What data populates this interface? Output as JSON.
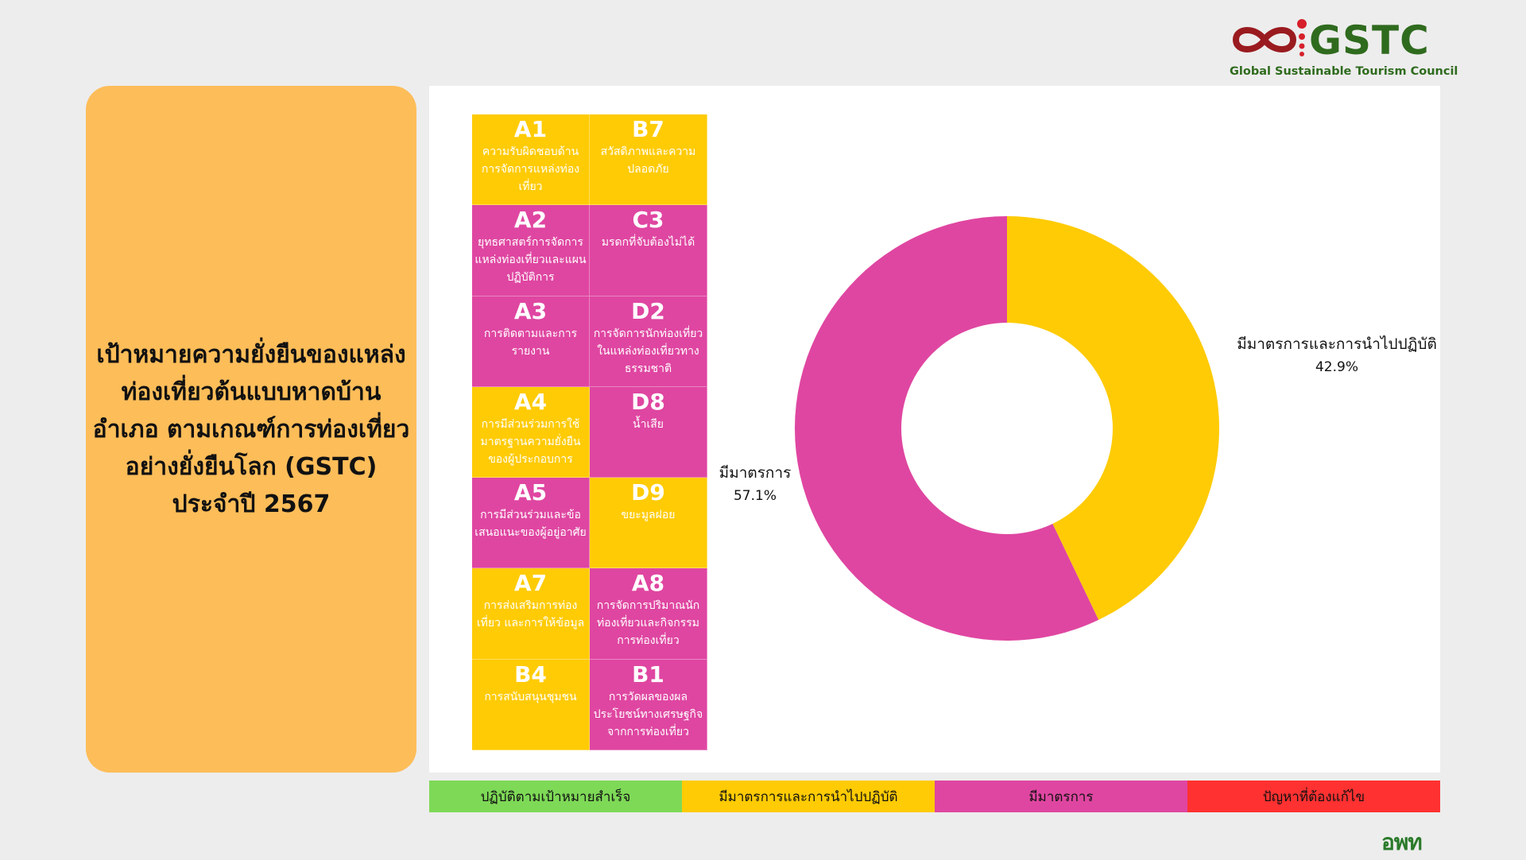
{
  "logo": {
    "name": "GSTC",
    "tagline": "Global Sustainable Tourism Council",
    "icon": "gstc-infinity-logo"
  },
  "title": "เป้าหมายความยั่งยืนของแหล่งท่องเที่ยวต้นแบบหาดบ้านอำเภอ ตามเกณฑ์การท่องเที่ยวอย่างยั่งยืนโลก (GSTC) ประจำปี 2567",
  "criteria": [
    {
      "code": "A1",
      "label": "ความรับผิดชอบด้านการจัดการแหล่งท่องเที่ยว",
      "status": "yellow"
    },
    {
      "code": "B7",
      "label": "สวัสดิภาพและความปลอดภัย",
      "status": "yellow"
    },
    {
      "code": "A2",
      "label": "ยุทธศาสตร์การจัดการแหล่งท่องเที่ยวและแผนปฏิบัติการ",
      "status": "magenta"
    },
    {
      "code": "C3",
      "label": "มรดกที่จับต้องไม่ได้",
      "status": "magenta"
    },
    {
      "code": "A3",
      "label": "การติดตามและการรายงาน",
      "status": "magenta"
    },
    {
      "code": "D2",
      "label": "การจัดการนักท่องเที่ยวในแหล่งท่องเที่ยวทางธรรมชาติ",
      "status": "magenta"
    },
    {
      "code": "A4",
      "label": "การมีส่วนร่วมการใช้มาตรฐานความยั่งยืนของผู้ประกอบการ",
      "status": "yellow"
    },
    {
      "code": "D8",
      "label": "น้ำเสีย",
      "status": "magenta"
    },
    {
      "code": "A5",
      "label": "การมีส่วนร่วมและข้อเสนอแนะของผู้อยู่อาศัย",
      "status": "magenta"
    },
    {
      "code": "D9",
      "label": "ขยะมูลฝอย",
      "status": "yellow"
    },
    {
      "code": "A7",
      "label": "การส่งเสริมการท่องเที่ยว และการให้ข้อมูล",
      "status": "yellow"
    },
    {
      "code": "A8",
      "label": "การจัดการปริมาณนักท่องเที่ยวและกิจกรรมการท่องเที่ยว",
      "status": "magenta"
    },
    {
      "code": "B4",
      "label": "การสนับสนุนชุมชน",
      "status": "yellow"
    },
    {
      "code": "B1",
      "label": "การวัดผลของผลประโยชน์ทางเศรษฐกิจจากการท่องเที่ยว",
      "status": "magenta"
    }
  ],
  "chart_data": {
    "type": "pie",
    "donut": true,
    "slices": [
      {
        "label": "มีมาตรการและการนำไปปฏิบัติ",
        "value": 42.9,
        "display": "42.9%",
        "color": "#ffcb05"
      },
      {
        "label": "มีมาตรการ",
        "value": 57.1,
        "display": "57.1%",
        "color": "#df46a1"
      }
    ]
  },
  "legend": [
    {
      "label": "ปฏิบัติตามเป้าหมายสำเร็จ",
      "color": "#7ed957"
    },
    {
      "label": "มีมาตรการและการนำไปปฏิบัติ",
      "color": "#ffcb05"
    },
    {
      "label": "มีมาตรการ",
      "color": "#df46a1"
    },
    {
      "label": "ปัญหาที่ต้องแก้ไข",
      "color": "#ff3131"
    }
  ],
  "colors": {
    "yellow": "#ffcb05",
    "magenta": "#df46a1",
    "card": "#fdbd59"
  },
  "footer_brand": "อพท"
}
